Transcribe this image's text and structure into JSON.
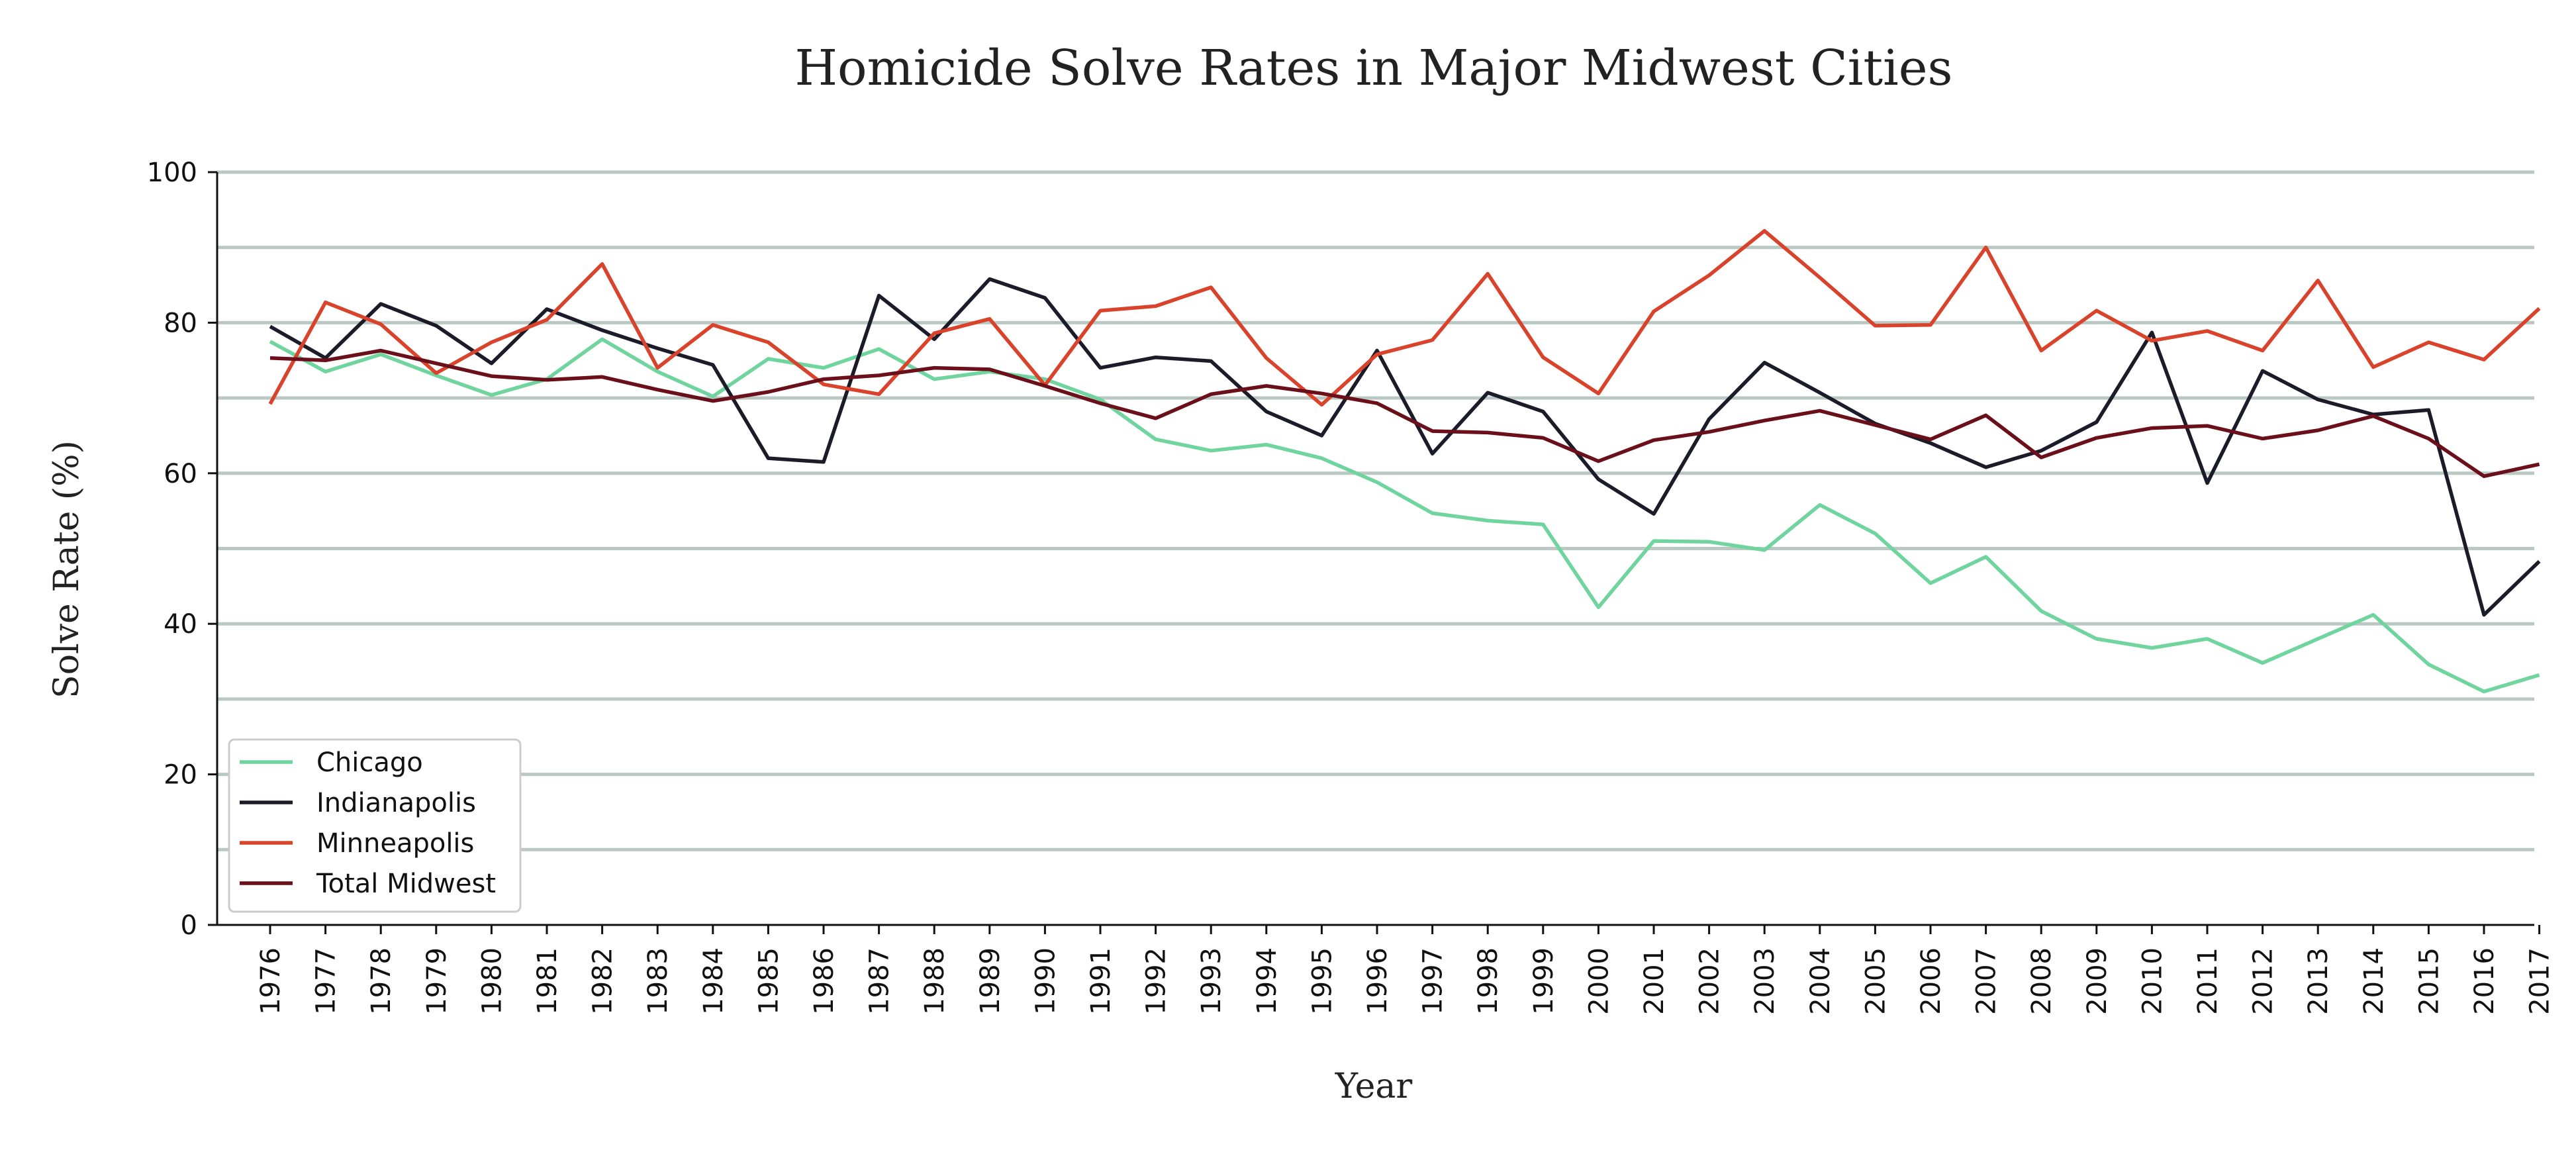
{
  "chart_data": {
    "type": "line",
    "title": "Homicide Solve Rates in Major Midwest Cities",
    "xlabel": "Year",
    "ylabel": "Solve Rate (%)",
    "ylim": [
      0,
      100
    ],
    "yticks": [
      "0",
      "20",
      "40",
      "60",
      "80",
      "100"
    ],
    "grid": "horizontal",
    "legend_position": "lower-left",
    "x": [
      "1976",
      "1977",
      "1978",
      "1979",
      "1980",
      "1981",
      "1982",
      "1983",
      "1984",
      "1985",
      "1986",
      "1987",
      "1988",
      "1989",
      "1990",
      "1991",
      "1992",
      "1993",
      "1994",
      "1995",
      "1996",
      "1997",
      "1998",
      "1999",
      "2000",
      "2001",
      "2002",
      "2003",
      "2004",
      "2005",
      "2006",
      "2007",
      "2008",
      "2009",
      "2010",
      "2011",
      "2012",
      "2013",
      "2014",
      "2015",
      "2016",
      "2017"
    ],
    "series": [
      {
        "name": "Chicago",
        "color": "#6fd49e",
        "values": [
          77.5,
          73.5,
          75.8,
          73.0,
          70.4,
          72.5,
          77.8,
          73.5,
          70.2,
          75.2,
          74.0,
          76.5,
          72.5,
          73.5,
          72.5,
          69.8,
          64.5,
          63.0,
          63.8,
          62.0,
          58.8,
          54.7,
          53.7,
          53.2,
          42.2,
          51.0,
          50.9,
          49.8,
          55.8,
          52.0,
          45.4,
          48.9,
          41.7,
          38.0,
          36.8,
          38.0,
          34.8,
          38.0,
          41.2,
          34.6,
          31.0,
          33.2
        ]
      },
      {
        "name": "Indianapolis",
        "color": "#1b1b2a",
        "values": [
          79.5,
          75.3,
          82.5,
          79.6,
          74.6,
          81.8,
          79.0,
          76.6,
          74.4,
          62.0,
          61.5,
          83.6,
          77.8,
          85.8,
          83.3,
          74.0,
          75.4,
          74.9,
          68.2,
          65.0,
          76.3,
          62.6,
          70.7,
          68.2,
          59.2,
          54.6,
          67.2,
          74.7,
          70.7,
          66.6,
          64.0,
          60.8,
          63.0,
          66.8,
          78.7,
          58.7,
          73.6,
          69.8,
          67.8,
          68.4,
          41.2,
          48.3
        ]
      },
      {
        "name": "Minneapolis",
        "color": "#d9432b",
        "values": [
          69.2,
          82.7,
          79.8,
          73.3,
          77.4,
          80.4,
          87.8,
          74.0,
          79.7,
          77.4,
          71.8,
          70.5,
          78.6,
          80.5,
          71.7,
          81.6,
          82.2,
          84.7,
          75.3,
          69.1,
          75.8,
          77.7,
          86.5,
          75.4,
          70.6,
          81.5,
          86.3,
          92.2,
          86.0,
          79.6,
          79.7,
          90.0,
          76.3,
          81.6,
          77.6,
          78.9,
          76.3,
          85.6,
          74.1,
          77.4,
          75.1,
          81.9
        ]
      },
      {
        "name": "Total Midwest",
        "color": "#6b0f1a",
        "values": [
          75.3,
          75.0,
          76.3,
          74.6,
          72.9,
          72.4,
          72.8,
          71.1,
          69.6,
          70.8,
          72.5,
          73.0,
          74.0,
          73.8,
          71.6,
          69.3,
          67.3,
          70.5,
          71.6,
          70.6,
          69.3,
          65.6,
          65.4,
          64.7,
          61.6,
          64.4,
          65.5,
          67.0,
          68.3,
          66.4,
          64.5,
          67.7,
          62.1,
          64.7,
          66.0,
          66.3,
          64.6,
          65.7,
          67.6,
          64.6,
          59.6,
          61.2
        ]
      }
    ]
  }
}
